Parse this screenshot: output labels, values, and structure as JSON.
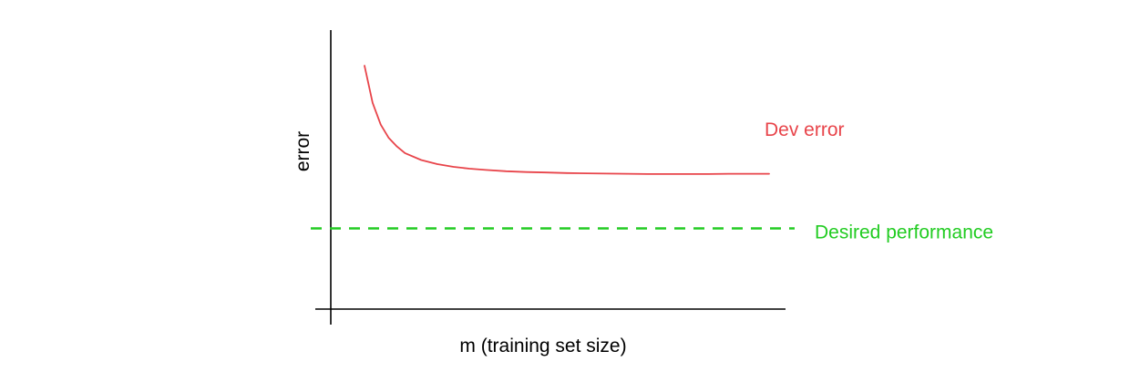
{
  "chart_data": {
    "type": "line",
    "title": "",
    "xlabel": "m (training set size)",
    "ylabel": "error",
    "xlim": [
      0,
      100
    ],
    "ylim": [
      0,
      100
    ],
    "grid": false,
    "x_ticks_labeled": false,
    "y_ticks_labeled": false,
    "series": [
      {
        "name": "Dev error",
        "color": "#e8444a",
        "x": [
          0,
          2,
          4,
          6,
          8,
          10,
          14,
          18,
          22,
          26,
          30,
          35,
          40,
          45,
          50,
          55,
          60,
          65,
          70,
          75,
          80,
          85,
          90,
          95,
          100
        ],
        "y": [
          95,
          80.5,
          72,
          66.8,
          63.5,
          60.9,
          58.2,
          56.6,
          55.5,
          54.8,
          54.3,
          53.8,
          53.5,
          53.3,
          53.1,
          53.0,
          52.9,
          52.8,
          52.7,
          52.7,
          52.7,
          52.7,
          52.8,
          52.8,
          52.8
        ]
      }
    ],
    "reference_lines": [
      {
        "label": "Desired performance",
        "orientation": "horizontal",
        "y": 31.5,
        "style": "dashed",
        "color": "#22cc22"
      }
    ],
    "colors": {
      "axis": "#000000",
      "dev_error": "#e8444a",
      "desired_performance": "#22cc22"
    }
  }
}
